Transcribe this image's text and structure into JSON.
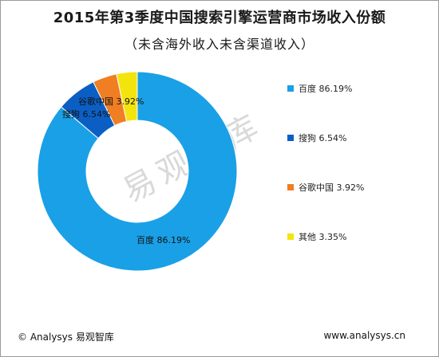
{
  "title": "2015年第3季度中国搜索引擎运营商市场收入份额",
  "subtitle": "（未含海外收入未含渠道收入）",
  "watermark": "易观智库",
  "footer": {
    "left": "© Analysys 易观智库",
    "right": "www.analysys.cn"
  },
  "chart_data": {
    "type": "pie",
    "style": "donut",
    "legend_position": "right",
    "categories": [
      "百度",
      "搜狗",
      "谷歌中国",
      "其他"
    ],
    "values": [
      86.19,
      6.54,
      3.92,
      3.35
    ],
    "value_labels": [
      "86.19%",
      "6.54%",
      "3.92%",
      "3.35%"
    ],
    "colors": [
      "#1aa0e6",
      "#0b5fc4",
      "#f07e23",
      "#f4e40e"
    ],
    "data_labels": [
      {
        "category": "百度",
        "text": "86.19%"
      },
      {
        "category": "搜狗",
        "text": "6.54%"
      },
      {
        "category": "谷歌中国",
        "text": "3.92%"
      }
    ]
  }
}
